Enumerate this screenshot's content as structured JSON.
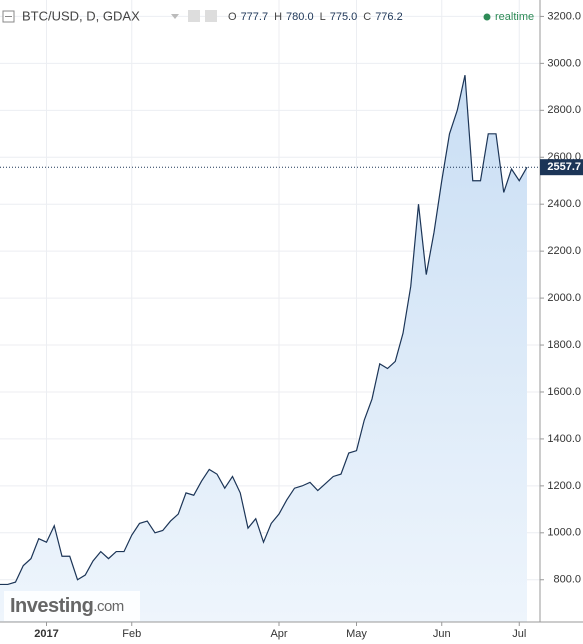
{
  "header": {
    "title": "BTC/USD, D, GDAX",
    "ohlc": [
      {
        "key": "O",
        "value": "777.7"
      },
      {
        "key": "H",
        "value": "780.0"
      },
      {
        "key": "L",
        "value": "775.0"
      },
      {
        "key": "C",
        "value": "776.2"
      }
    ],
    "status": "realtime"
  },
  "logo": {
    "brand": "Investing",
    "suffix": ".com"
  },
  "chart_data": {
    "type": "area",
    "color": "#1c3557",
    "fill": "#dceaf8",
    "categories": [
      null,
      null,
      null,
      null,
      null,
      null,
      "2017",
      null,
      null,
      null,
      null,
      null,
      null,
      null,
      null,
      null,
      null,
      "Feb",
      null,
      null,
      null,
      null,
      null,
      null,
      null,
      null,
      null,
      null,
      null,
      null,
      null,
      null,
      null,
      null,
      null,
      null,
      "Apr",
      null,
      null,
      null,
      null,
      null,
      null,
      null,
      null,
      null,
      "May",
      null,
      null,
      null,
      null,
      null,
      null,
      null,
      null,
      null,
      null,
      "Jun",
      null,
      null,
      null,
      null,
      null,
      null,
      null,
      null,
      null,
      "Jul",
      null
    ],
    "values": [
      780,
      780,
      790,
      860,
      890,
      975,
      960,
      1030,
      900,
      900,
      800,
      820,
      880,
      920,
      890,
      920,
      920,
      990,
      1040,
      1050,
      1000,
      1010,
      1050,
      1080,
      1170,
      1160,
      1220,
      1270,
      1250,
      1190,
      1240,
      1170,
      1020,
      1060,
      960,
      1040,
      1080,
      1140,
      1190,
      1200,
      1215,
      1180,
      1210,
      1240,
      1250,
      1340,
      1350,
      1480,
      1570,
      1720,
      1700,
      1730,
      1850,
      2050,
      2400,
      2100,
      2280,
      2500,
      2700,
      2800,
      2950,
      2500,
      2500,
      2700,
      2700,
      2450,
      2550,
      2500,
      2557.7
    ],
    "ylim": [
      620,
      3270
    ],
    "yticks": [
      {
        "value": 800,
        "label": "800.0"
      },
      {
        "value": 1000,
        "label": "1000.0"
      },
      {
        "value": 1200,
        "label": "1200.0"
      },
      {
        "value": 1400,
        "label": "1400.0"
      },
      {
        "value": 1600,
        "label": "1600.0"
      },
      {
        "value": 1800,
        "label": "1800.0"
      },
      {
        "value": 2000,
        "label": "2000.0"
      },
      {
        "value": 2200,
        "label": "2200.0"
      },
      {
        "value": 2400,
        "label": "2400.0"
      },
      {
        "value": 2600,
        "label": "2600.0"
      },
      {
        "value": 2800,
        "label": "2800.0"
      },
      {
        "value": 3000,
        "label": "3000.0"
      },
      {
        "value": 3200,
        "label": "3200.0"
      }
    ],
    "last_price": 2557.7,
    "grid": true
  }
}
